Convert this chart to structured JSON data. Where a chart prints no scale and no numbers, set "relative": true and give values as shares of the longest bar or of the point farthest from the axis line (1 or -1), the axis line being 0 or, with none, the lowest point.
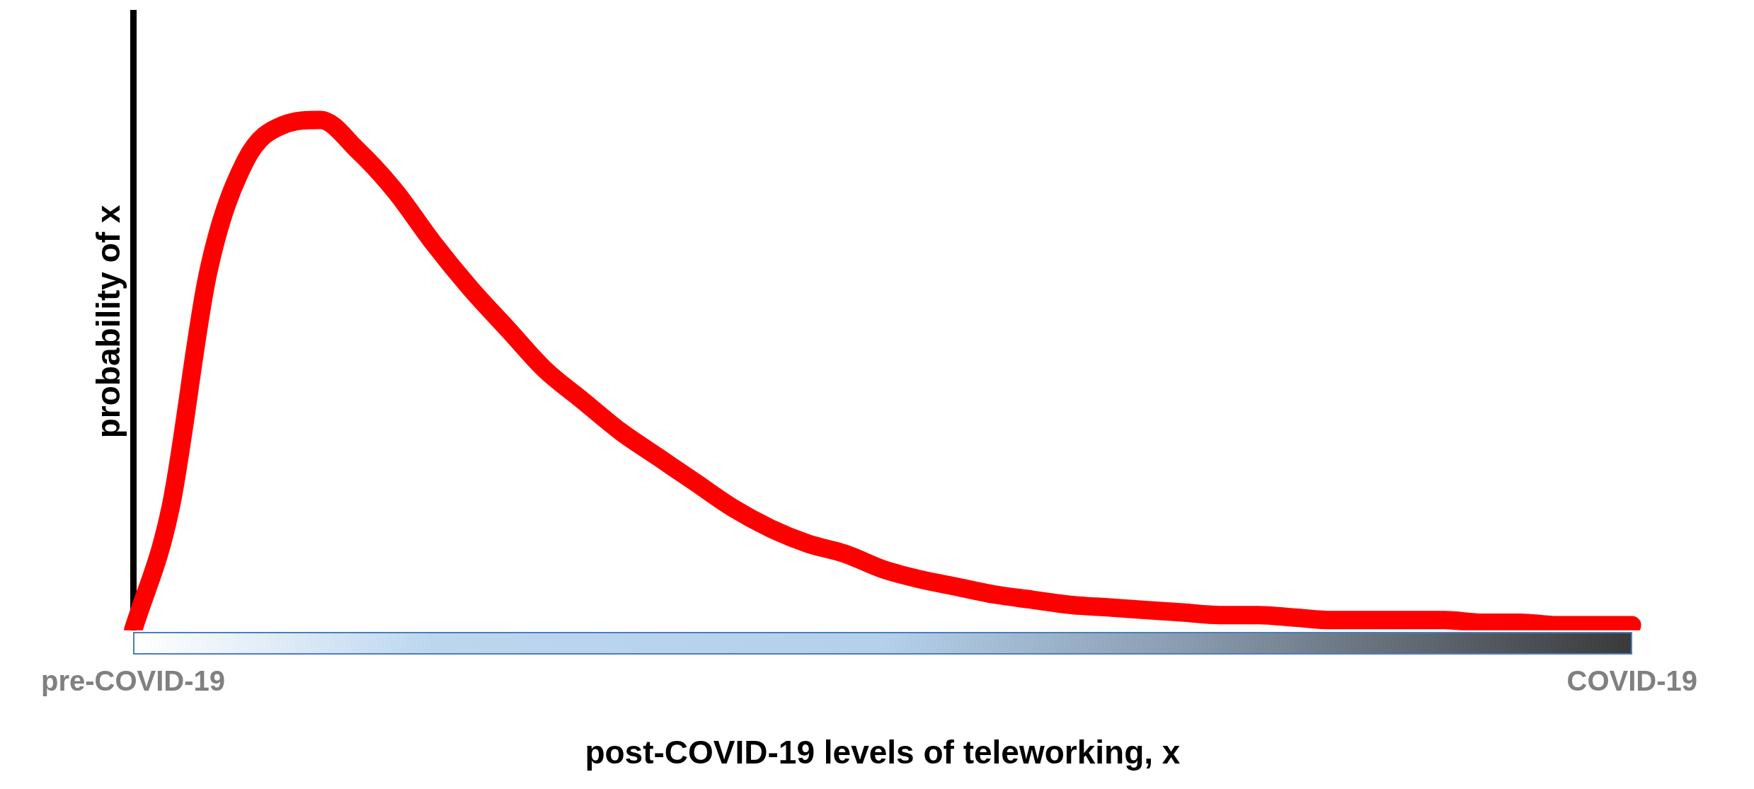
{
  "chart_data": {
    "type": "line",
    "xlabel": "post-COVID-19 levels of teleworking, x",
    "ylabel": "probability of x",
    "relative": true,
    "categories": [
      "pre-COVID-19",
      null,
      null,
      null,
      null,
      null,
      null,
      null,
      null,
      null,
      null,
      null,
      null,
      null,
      null,
      null,
      null,
      null,
      null,
      null,
      null,
      null,
      null,
      null,
      null,
      null,
      null,
      null,
      null,
      null,
      null,
      null,
      null,
      null,
      null,
      null,
      null,
      null,
      null,
      null,
      "COVID-19"
    ],
    "grid": false,
    "legend": false,
    "marker": "none",
    "line_style": "solid",
    "tick_labels": "x",
    "series": [
      {
        "color": "#ff0000",
        "values": [
          0,
          0.24,
          0.7,
          0.92,
          0.99,
          1,
          0.94,
          0.86,
          0.76,
          0.67,
          0.59,
          0.51,
          0.45,
          0.39,
          0.34,
          0.29,
          0.24,
          0.2,
          0.17,
          0.15,
          0.12,
          0.1,
          0.085,
          0.07,
          0.06,
          0.05,
          0.045,
          0.04,
          0.035,
          0.03,
          0.03,
          0.025,
          0.02,
          0.02,
          0.02,
          0.02,
          0.015,
          0.015,
          0.01,
          0.01,
          0.01
        ]
      }
    ]
  }
}
